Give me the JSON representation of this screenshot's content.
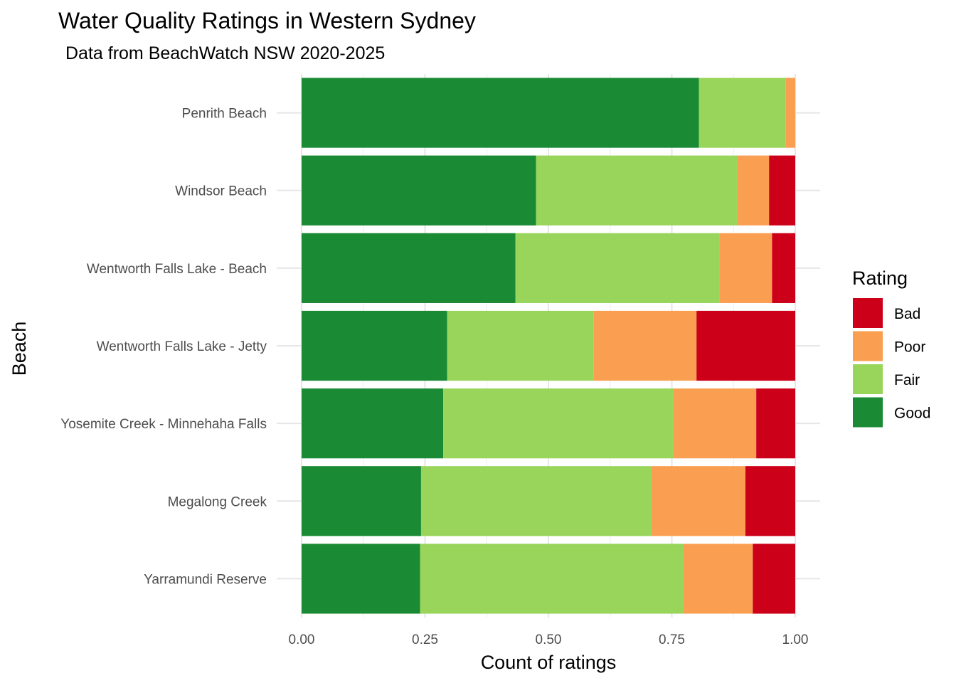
{
  "chart_data": {
    "type": "bar",
    "orientation": "horizontal",
    "stacked": true,
    "title": "Water Quality Ratings in Western Sydney",
    "subtitle": "Data from BeachWatch NSW 2020-2025",
    "xlabel": "Count of ratings",
    "ylabel": "Beach",
    "xlim": [
      0,
      1
    ],
    "xticks": [
      "0.00",
      "0.25",
      "0.50",
      "0.75",
      "1.00"
    ],
    "grid": true,
    "legend": {
      "title": "Rating",
      "position": "right"
    },
    "categories": [
      "Penrith Beach",
      "Windsor Beach",
      "Wentworth Falls Lake - Beach",
      "Wentworth Falls Lake - Jetty",
      "Yosemite Creek - Minnehaha Falls",
      "Megalong Creek",
      "Yarramundi Reserve"
    ],
    "series": [
      {
        "name": "Good",
        "color": "#1a8a34",
        "values": [
          0.805,
          0.475,
          0.433,
          0.295,
          0.287,
          0.242,
          0.24
        ]
      },
      {
        "name": "Fair",
        "color": "#98d55a",
        "values": [
          0.176,
          0.407,
          0.413,
          0.297,
          0.466,
          0.466,
          0.533
        ]
      },
      {
        "name": "Poor",
        "color": "#fa9f52",
        "values": [
          0.019,
          0.065,
          0.107,
          0.208,
          0.168,
          0.191,
          0.141
        ]
      },
      {
        "name": "Bad",
        "color": "#cc0019",
        "values": [
          0.0,
          0.053,
          0.047,
          0.2,
          0.079,
          0.101,
          0.086
        ]
      }
    ],
    "legend_order": [
      "Bad",
      "Poor",
      "Fair",
      "Good"
    ]
  }
}
